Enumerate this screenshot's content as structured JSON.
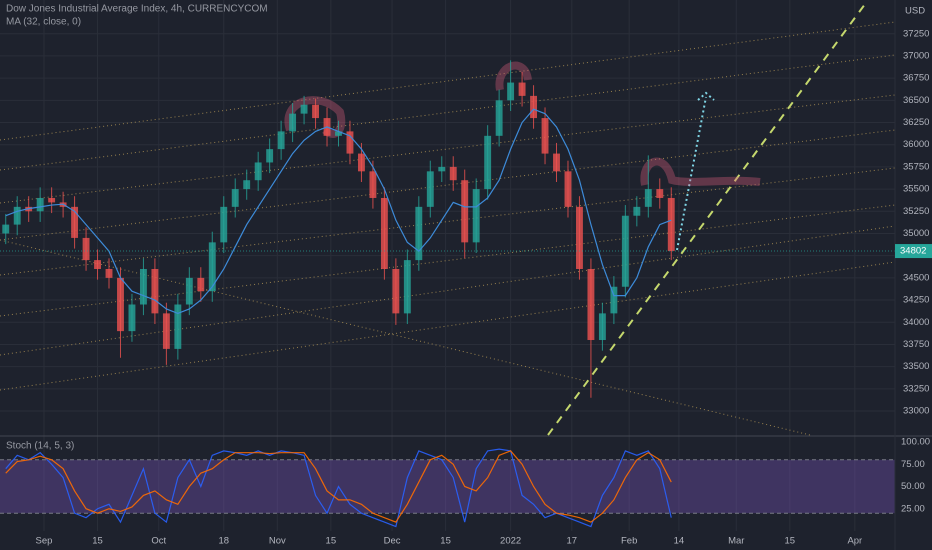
{
  "chart_data": [
    {
      "type": "candlestick",
      "title": "Dow Jones Industrial Average Index, 4h, CURRENCYCOM",
      "currency": "USD",
      "up_color": "#26a69a",
      "down_color": "#ef5350",
      "xlim": [
        -11.5,
        222.5
      ],
      "xticks": [
        {
          "value": 0,
          "label": "Sep"
        },
        {
          "value": 14,
          "label": "15"
        },
        {
          "value": 30,
          "label": "Oct"
        },
        {
          "value": 47,
          "label": "18"
        },
        {
          "value": 61,
          "label": "Nov"
        },
        {
          "value": 75,
          "label": "15"
        },
        {
          "value": 91,
          "label": "Dec"
        },
        {
          "value": 105,
          "label": "15"
        },
        {
          "value": 122,
          "label": "2022"
        },
        {
          "value": 138,
          "label": "17"
        },
        {
          "value": 153,
          "label": "Feb"
        },
        {
          "value": 166,
          "label": "14"
        },
        {
          "value": 181,
          "label": "Mar"
        },
        {
          "value": 195,
          "label": "15"
        },
        {
          "value": 212,
          "label": "Apr"
        }
      ],
      "ylim": [
        32730,
        37630
      ],
      "yticks": [
        33000,
        33250,
        33500,
        33750,
        34000,
        34250,
        34500,
        34750,
        35000,
        35250,
        35500,
        35750,
        36000,
        36250,
        36500,
        36750,
        37000,
        37250
      ],
      "grid": true,
      "x": [
        -10,
        -7,
        -4,
        -1,
        2,
        5,
        8,
        11,
        14,
        17,
        20,
        23,
        26,
        29,
        32,
        35,
        38,
        41,
        44,
        47,
        50,
        53,
        56,
        59,
        62,
        65,
        68,
        71,
        74,
        77,
        80,
        83,
        86,
        89,
        92,
        95,
        98,
        101,
        104,
        107,
        110,
        113,
        116,
        119,
        122,
        125,
        128,
        131,
        134,
        137,
        140,
        143,
        146,
        149,
        152,
        155,
        158,
        161,
        164
      ],
      "open": [
        35000,
        35100,
        35300,
        35250,
        35400,
        35350,
        35300,
        34950,
        34700,
        34600,
        34500,
        33900,
        34200,
        34600,
        34100,
        33700,
        34200,
        34500,
        34350,
        34900,
        35300,
        35500,
        35600,
        35800,
        35950,
        36150,
        36350,
        36450,
        36300,
        36100,
        36150,
        35900,
        35700,
        35400,
        34600,
        34100,
        34700,
        35300,
        35700,
        35750,
        35600,
        34900,
        35500,
        36100,
        36500,
        36700,
        36550,
        36300,
        35900,
        35700,
        35300,
        34600,
        33800,
        34100,
        34400,
        35200,
        35300,
        35500,
        35400
      ],
      "high": [
        35220,
        35420,
        35420,
        35520,
        35520,
        35470,
        35420,
        35070,
        34820,
        34720,
        34620,
        34320,
        34720,
        34720,
        34220,
        34320,
        34620,
        34620,
        35020,
        35420,
        35620,
        35720,
        35920,
        36070,
        36270,
        36470,
        36550,
        36520,
        36420,
        36270,
        36270,
        36020,
        35820,
        35520,
        34720,
        34820,
        35420,
        35820,
        35870,
        35870,
        35720,
        35620,
        36220,
        36620,
        36950,
        36820,
        36670,
        36420,
        36020,
        35820,
        35420,
        34720,
        34220,
        34520,
        35320,
        35420,
        35880,
        35620,
        35520
      ],
      "low": [
        34880,
        34980,
        35130,
        35130,
        35230,
        35180,
        34830,
        34580,
        34480,
        34380,
        33600,
        33780,
        34080,
        33980,
        33520,
        33580,
        34080,
        34230,
        34230,
        34780,
        35180,
        35380,
        35480,
        35680,
        35830,
        36030,
        36230,
        36180,
        35980,
        35980,
        35780,
        35580,
        35280,
        34480,
        33970,
        33980,
        34580,
        35180,
        35580,
        35480,
        34720,
        34780,
        35380,
        35980,
        36380,
        36430,
        36180,
        35780,
        35580,
        35180,
        34480,
        33150,
        33680,
        33980,
        34280,
        35080,
        35180,
        35280,
        34700
      ],
      "close": [
        35100,
        35300,
        35250,
        35400,
        35350,
        35300,
        34950,
        34700,
        34600,
        34500,
        33900,
        34200,
        34600,
        34100,
        33700,
        34200,
        34500,
        34350,
        34900,
        35300,
        35500,
        35600,
        35800,
        35950,
        36150,
        36350,
        36450,
        36300,
        36100,
        36150,
        35900,
        35700,
        35400,
        34600,
        34100,
        34700,
        35300,
        35700,
        35750,
        35600,
        34900,
        35500,
        36100,
        36500,
        36700,
        36550,
        36300,
        35900,
        35700,
        35300,
        34600,
        33800,
        34100,
        34400,
        35200,
        35300,
        35500,
        35400,
        34802
      ],
      "ma": {
        "name": "MA (32, close, 0)",
        "color": "#3d8bd9",
        "values": [
          35200,
          35250,
          35280,
          35300,
          35320,
          35330,
          35250,
          35100,
          34950,
          34800,
          34500,
          34350,
          34300,
          34250,
          34150,
          34100,
          34150,
          34250,
          34400,
          34600,
          34850,
          35100,
          35300,
          35500,
          35700,
          35900,
          36050,
          36150,
          36200,
          36150,
          36100,
          35950,
          35750,
          35500,
          35150,
          34900,
          34800,
          34950,
          35150,
          35350,
          35300,
          35300,
          35400,
          35600,
          35950,
          36250,
          36400,
          36350,
          36200,
          35950,
          35600,
          35100,
          34650,
          34300,
          34300,
          34500,
          34850,
          35100,
          35150
        ]
      }
    },
    {
      "type": "line",
      "title": "Stoch (14, 5, 3)",
      "ylim": [
        0,
        105.6
      ],
      "yticks": [
        {
          "value": 100,
          "label": "100.00"
        },
        {
          "value": 75,
          "label": "75.00"
        },
        {
          "value": 50,
          "label": "50.00"
        },
        {
          "value": 25,
          "label": "25.00"
        }
      ],
      "band": [
        20,
        80
      ],
      "band_color": "#7e57c2",
      "series": [
        {
          "color": "#2962ff",
          "values": [
            70,
            85,
            80,
            88,
            75,
            60,
            20,
            15,
            25,
            30,
            10,
            40,
            70,
            20,
            10,
            60,
            80,
            50,
            85,
            90,
            88,
            85,
            90,
            85,
            90,
            88,
            85,
            40,
            20,
            50,
            30,
            20,
            15,
            10,
            5,
            60,
            90,
            85,
            80,
            60,
            10,
            70,
            90,
            92,
            90,
            40,
            30,
            15,
            20,
            15,
            10,
            5,
            40,
            60,
            90,
            85,
            90,
            70,
            15
          ]
        },
        {
          "color": "#ff6d00",
          "values": [
            65,
            78,
            80,
            84,
            80,
            70,
            45,
            25,
            20,
            25,
            22,
            27,
            40,
            45,
            35,
            30,
            50,
            65,
            70,
            80,
            88,
            88,
            88,
            87,
            88,
            88,
            88,
            70,
            45,
            35,
            35,
            30,
            20,
            15,
            10,
            30,
            55,
            80,
            85,
            75,
            50,
            45,
            60,
            85,
            90,
            75,
            50,
            30,
            20,
            18,
            15,
            10,
            20,
            35,
            60,
            80,
            88,
            80,
            55
          ]
        }
      ]
    }
  ]
}
